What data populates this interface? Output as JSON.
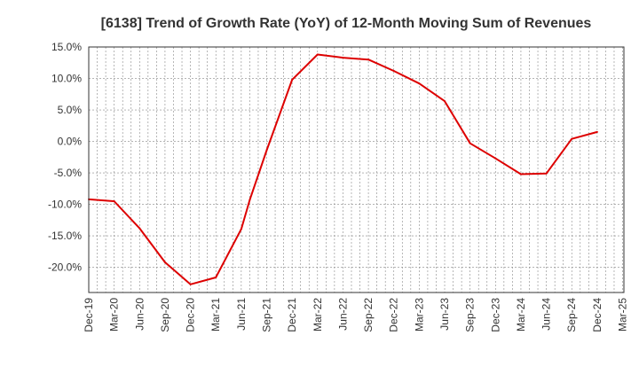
{
  "chart_data": {
    "type": "line",
    "title": "[6138]  Trend of Growth Rate (YoY) of 12-Month Moving Sum of Revenues",
    "xlabel": "",
    "ylabel": "",
    "ylim": [
      -24,
      15
    ],
    "yticks": [
      15,
      10,
      5,
      0,
      -5,
      -10,
      -15,
      -20
    ],
    "ytick_labels": [
      "15.0%",
      "10.0%",
      "5.0%",
      "0.0%",
      "-5.0%",
      "-10.0%",
      "-15.0%",
      "-20.0%"
    ],
    "xtick_labels": [
      "Dec-19",
      "Mar-20",
      "Jun-20",
      "Sep-20",
      "Dec-20",
      "Mar-21",
      "Jun-21",
      "Sep-21",
      "Dec-21",
      "Mar-22",
      "Jun-22",
      "Sep-22",
      "Dec-22",
      "Mar-23",
      "Jun-23",
      "Sep-23",
      "Dec-23",
      "Mar-24",
      "Jun-24",
      "Sep-24",
      "Dec-24",
      "Mar-25"
    ],
    "grid": true,
    "line_color": "#dd0000",
    "series": [
      {
        "x": [
          "Dec-19",
          "Mar-20",
          "Jun-20",
          "Sep-20",
          "Dec-20",
          "Mar-21",
          "Jun-21",
          "Jul-21",
          "Sep-21",
          "Dec-21",
          "Mar-22",
          "Jun-22",
          "Sep-22",
          "Dec-22",
          "Mar-23",
          "Jun-23",
          "Sep-23",
          "Dec-23",
          "Mar-24",
          "Jun-24",
          "Sep-24",
          "Dec-24"
        ],
        "values": [
          -9.2,
          -9.5,
          -13.8,
          -19.2,
          -22.7,
          -21.6,
          -13.9,
          -9.3,
          -1.4,
          9.8,
          13.8,
          13.3,
          13.0,
          11.2,
          9.2,
          6.4,
          -0.3,
          -2.7,
          -5.2,
          -5.1,
          0.4,
          1.5
        ]
      }
    ]
  }
}
